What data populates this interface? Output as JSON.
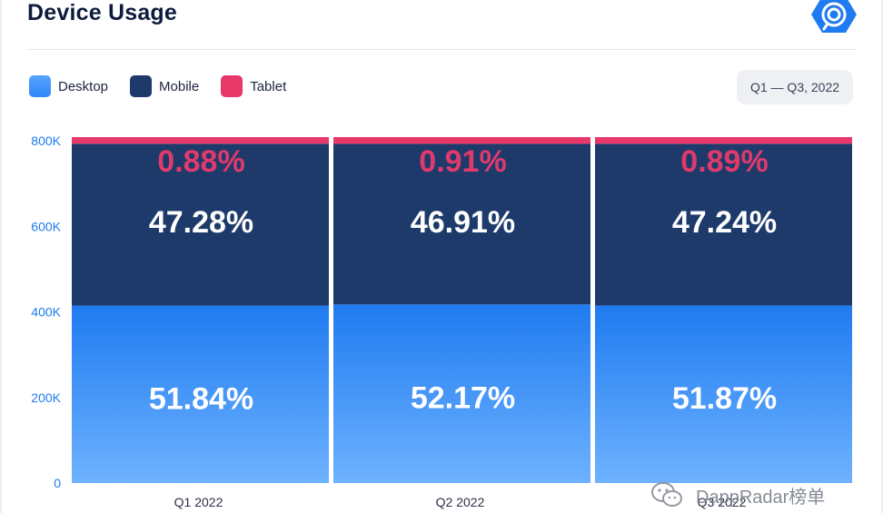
{
  "header": {
    "title": "Device Usage"
  },
  "legend": [
    {
      "label": "Desktop",
      "color": "#2f86f5"
    },
    {
      "label": "Mobile",
      "color": "#1d3a6b"
    },
    {
      "label": "Tablet",
      "color": "#e6396a"
    }
  ],
  "period": {
    "label": "Q1 — Q3, 2022"
  },
  "watermark": {
    "text": "DappRadar榜单",
    "icon": "wechat-icon"
  },
  "chart_data": {
    "type": "bar",
    "stacked": true,
    "categories": [
      "Q1 2022",
      "Q2 2022",
      "Q3 2022"
    ],
    "series": [
      {
        "name": "Desktop",
        "values": [
          51.84,
          52.17,
          51.87
        ],
        "labels": [
          "51.84%",
          "52.17%",
          "51.87%"
        ],
        "color": "#2f86f5"
      },
      {
        "name": "Mobile",
        "values": [
          47.28,
          46.91,
          47.24
        ],
        "labels": [
          "47.28%",
          "46.91%",
          "47.24%"
        ],
        "color": "#1d3a6b"
      },
      {
        "name": "Tablet",
        "values": [
          0.88,
          0.91,
          0.89
        ],
        "labels": [
          "0.88%",
          "0.91%",
          "0.89%"
        ],
        "color": "#e6396a"
      }
    ],
    "y_ticks": [
      "0",
      "200K",
      "400K",
      "600K",
      "800K"
    ],
    "ylim": [
      0,
      800000
    ],
    "grid": false,
    "legend_position": "top-left"
  }
}
